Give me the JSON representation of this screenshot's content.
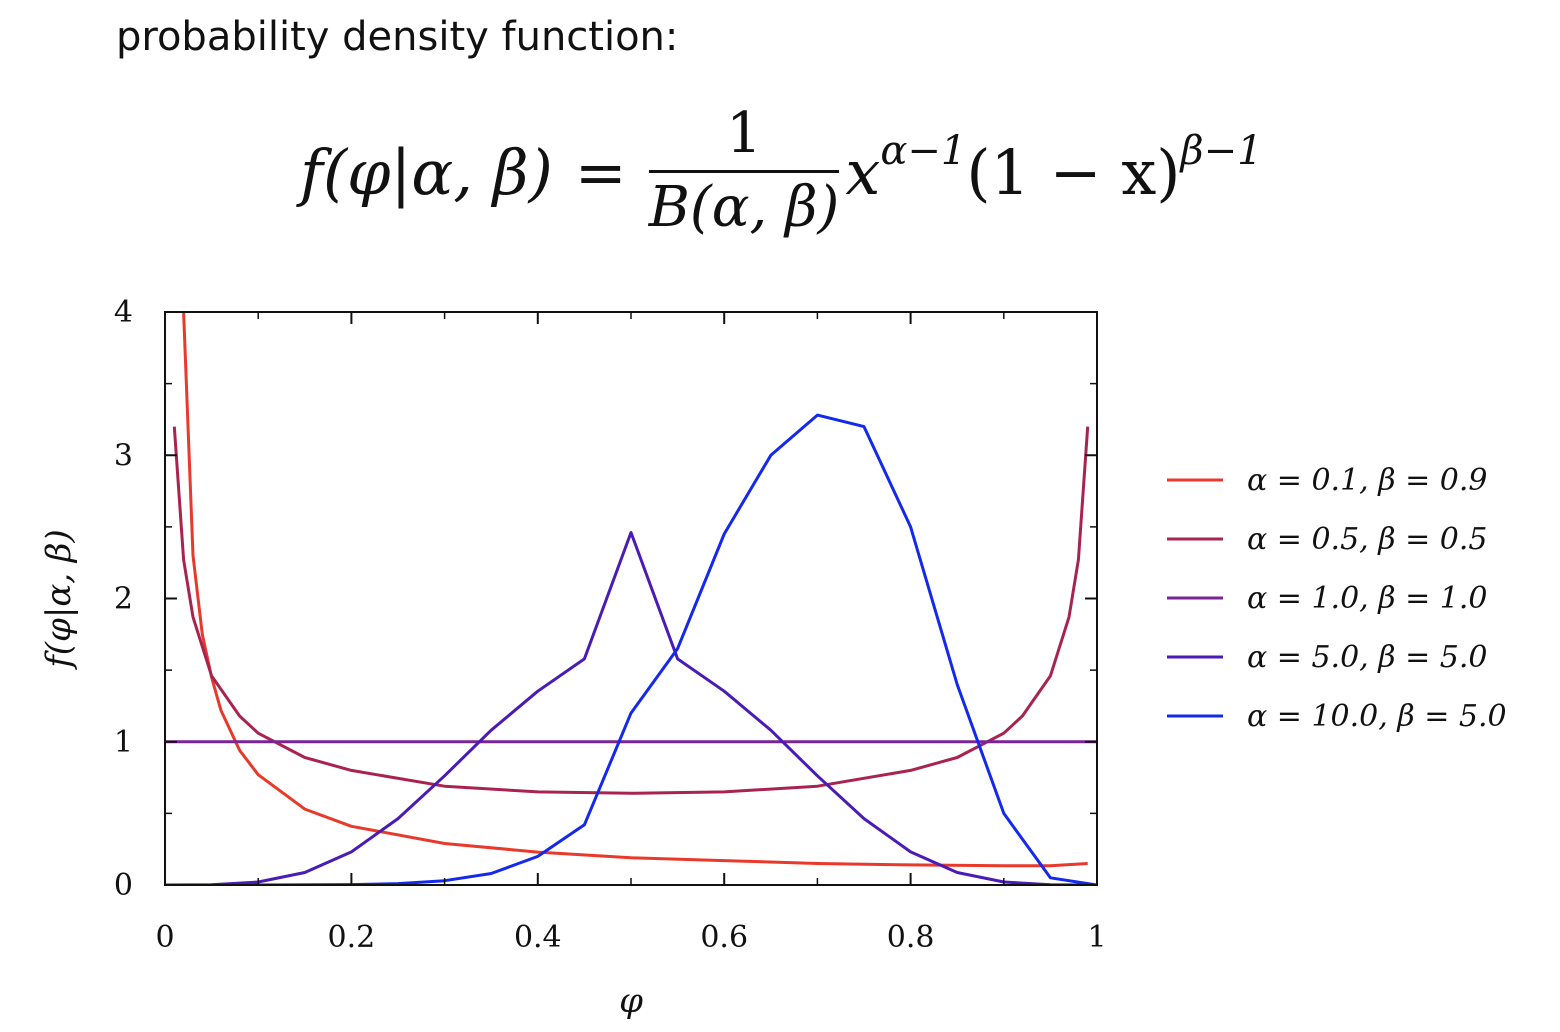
{
  "heading": "probability density function:",
  "formula": {
    "lhs": "f(φ|α, β)",
    "eq": "=",
    "numerator": "1",
    "denominator": "B(α, β)",
    "term1_base": "x",
    "term1_exp": "α−1",
    "term2_base": "(1 − x)",
    "term2_exp": "β−1"
  },
  "chart_data": {
    "type": "line",
    "xlabel": "φ",
    "ylabel": "f(φ|α, β)",
    "xlim": [
      0,
      1
    ],
    "ylim": [
      0,
      4
    ],
    "xticks": [
      "0",
      "0.2",
      "0.4",
      "0.6",
      "0.8",
      "1"
    ],
    "yticks": [
      "0",
      "1",
      "2",
      "3",
      "4"
    ],
    "grid": false,
    "legend_position": "right",
    "series": [
      {
        "name": "α = 0.1, β = 0.9",
        "color": "#e8392b",
        "x": [
          0.02,
          0.03,
          0.04,
          0.05,
          0.06,
          0.08,
          0.1,
          0.15,
          0.2,
          0.3,
          0.4,
          0.5,
          0.6,
          0.7,
          0.8,
          0.9,
          0.95,
          0.99
        ],
        "y": [
          4.0,
          2.3,
          1.75,
          1.45,
          1.22,
          0.94,
          0.77,
          0.53,
          0.41,
          0.29,
          0.23,
          0.19,
          0.17,
          0.15,
          0.14,
          0.135,
          0.135,
          0.15
        ]
      },
      {
        "name": "α = 0.5, β = 0.5",
        "color": "#a8244f",
        "x": [
          0.01,
          0.02,
          0.03,
          0.05,
          0.08,
          0.1,
          0.15,
          0.2,
          0.3,
          0.4,
          0.5,
          0.6,
          0.7,
          0.8,
          0.85,
          0.9,
          0.92,
          0.95,
          0.97,
          0.98,
          0.99
        ],
        "y": [
          3.2,
          2.27,
          1.87,
          1.46,
          1.18,
          1.06,
          0.89,
          0.8,
          0.69,
          0.65,
          0.64,
          0.65,
          0.69,
          0.8,
          0.89,
          1.06,
          1.18,
          1.46,
          1.87,
          2.27,
          3.2
        ]
      },
      {
        "name": "α = 1.0, β = 1.0",
        "color": "#7a2592",
        "x": [
          0,
          1
        ],
        "y": [
          1,
          1
        ]
      },
      {
        "name": "α = 5.0, β = 5.0",
        "color": "#4a1bb6",
        "x": [
          0,
          0.05,
          0.1,
          0.15,
          0.2,
          0.25,
          0.3,
          0.35,
          0.4,
          0.45,
          0.5,
          0.55,
          0.6,
          0.65,
          0.7,
          0.75,
          0.8,
          0.85,
          0.9,
          0.95,
          1
        ],
        "y": [
          0,
          0.0016,
          0.0207,
          0.0871,
          0.2314,
          0.4636,
          0.7626,
          1.0805,
          1.3526,
          1.5786,
          2.4609,
          1.5786,
          1.3526,
          1.0805,
          0.7626,
          0.4636,
          0.2314,
          0.0871,
          0.0207,
          0.0016,
          0
        ]
      },
      {
        "name": "α = 10.0, β = 5.0",
        "color": "#1428ee",
        "x": [
          0,
          0.1,
          0.2,
          0.25,
          0.3,
          0.35,
          0.4,
          0.45,
          0.5,
          0.55,
          0.6,
          0.65,
          0.7,
          0.75,
          0.8,
          0.85,
          0.9,
          0.95,
          1
        ],
        "y": [
          0,
          0.0,
          0.003,
          0.01,
          0.03,
          0.08,
          0.2,
          0.42,
          1.2,
          1.65,
          2.45,
          3.0,
          3.28,
          3.2,
          2.5,
          1.4,
          0.5,
          0.05,
          0
        ]
      }
    ]
  }
}
